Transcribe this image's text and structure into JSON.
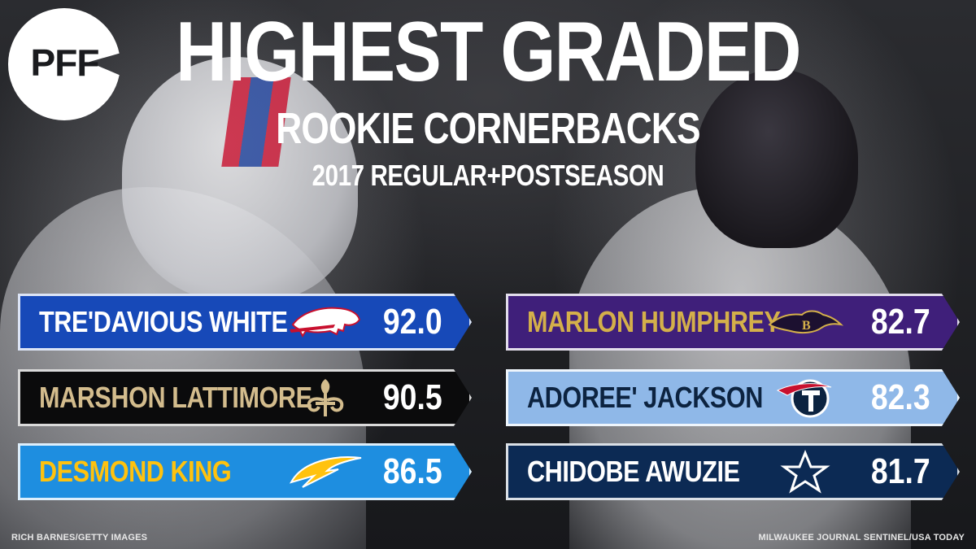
{
  "brand": {
    "logo_text": "PFF"
  },
  "header": {
    "title": "HIGHEST GRADED",
    "subtitle": "ROOKIE CORNERBACKS",
    "season": "2017 REGULAR+POSTSEASON"
  },
  "players_left": [
    {
      "name": "TRE'DAVIOUS WHITE",
      "grade": "92.0",
      "team_icon": "bills-logo-icon",
      "bg_color": "#1749b8",
      "name_color": "#ffffff"
    },
    {
      "name": "MARSHON LATTIMORE",
      "grade": "90.5",
      "team_icon": "saints-logo-icon",
      "bg_color": "#0b0b0c",
      "name_color": "#d3bc8d"
    },
    {
      "name": "DESMOND KING",
      "grade": "86.5",
      "team_icon": "chargers-logo-icon",
      "bg_color": "#1e8ee0",
      "name_color": "#ffc20e"
    }
  ],
  "players_right": [
    {
      "name": "MARLON HUMPHREY",
      "grade": "82.7",
      "team_icon": "ravens-logo-icon",
      "bg_color": "#3f1f7a",
      "name_color": "#d4b04a"
    },
    {
      "name": "ADOREE' JACKSON",
      "grade": "82.3",
      "team_icon": "titans-logo-icon",
      "bg_color": "#8fb8e8",
      "name_color": "#0c2340"
    },
    {
      "name": "CHIDOBE AWUZIE",
      "grade": "81.7",
      "team_icon": "cowboys-logo-icon",
      "bg_color": "#0c2a54",
      "name_color": "#ffffff"
    }
  ],
  "credits": {
    "left": "RICH BARNES/GETTY IMAGES",
    "right": "MILWAUKEE JOURNAL SENTINEL/USA TODAY"
  }
}
